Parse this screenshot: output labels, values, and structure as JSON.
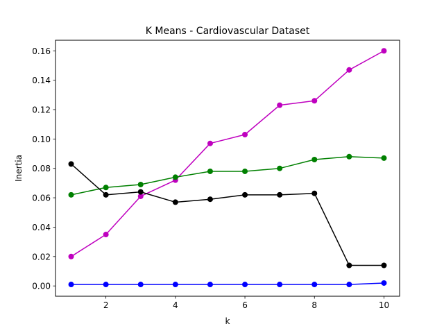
{
  "chart_data": {
    "type": "line",
    "title": "K Means - Cardiovascular Dataset",
    "xlabel": "k",
    "ylabel": "Inertia",
    "x": [
      1,
      2,
      3,
      4,
      5,
      6,
      7,
      8,
      9,
      10
    ],
    "xlim": [
      0.55,
      10.45
    ],
    "ylim": [
      -0.007,
      0.1672
    ],
    "xticks": [
      2,
      4,
      6,
      8,
      10
    ],
    "xtick_labels": [
      "2",
      "4",
      "6",
      "8",
      "10"
    ],
    "yticks": [
      0.0,
      0.02,
      0.04,
      0.06,
      0.08,
      0.1,
      0.12,
      0.14,
      0.16
    ],
    "ytick_labels": [
      "0.00",
      "0.02",
      "0.04",
      "0.06",
      "0.08",
      "0.10",
      "0.12",
      "0.14",
      "0.16"
    ],
    "grid": false,
    "legend": false,
    "series": [
      {
        "color": "#0000ff",
        "values": [
          0.001,
          0.001,
          0.001,
          0.001,
          0.001,
          0.001,
          0.001,
          0.001,
          0.001,
          0.002
        ]
      },
      {
        "color": "#bf00bf",
        "values": [
          0.02,
          0.035,
          0.061,
          0.072,
          0.097,
          0.103,
          0.123,
          0.126,
          0.147,
          0.16
        ]
      },
      {
        "color": "#008000",
        "values": [
          0.062,
          0.067,
          0.069,
          0.074,
          0.078,
          0.078,
          0.08,
          0.086,
          0.088,
          0.087
        ]
      },
      {
        "color": "#000000",
        "values": [
          0.083,
          0.062,
          0.064,
          0.057,
          0.059,
          0.062,
          0.062,
          0.063,
          0.014,
          0.014
        ]
      }
    ]
  }
}
